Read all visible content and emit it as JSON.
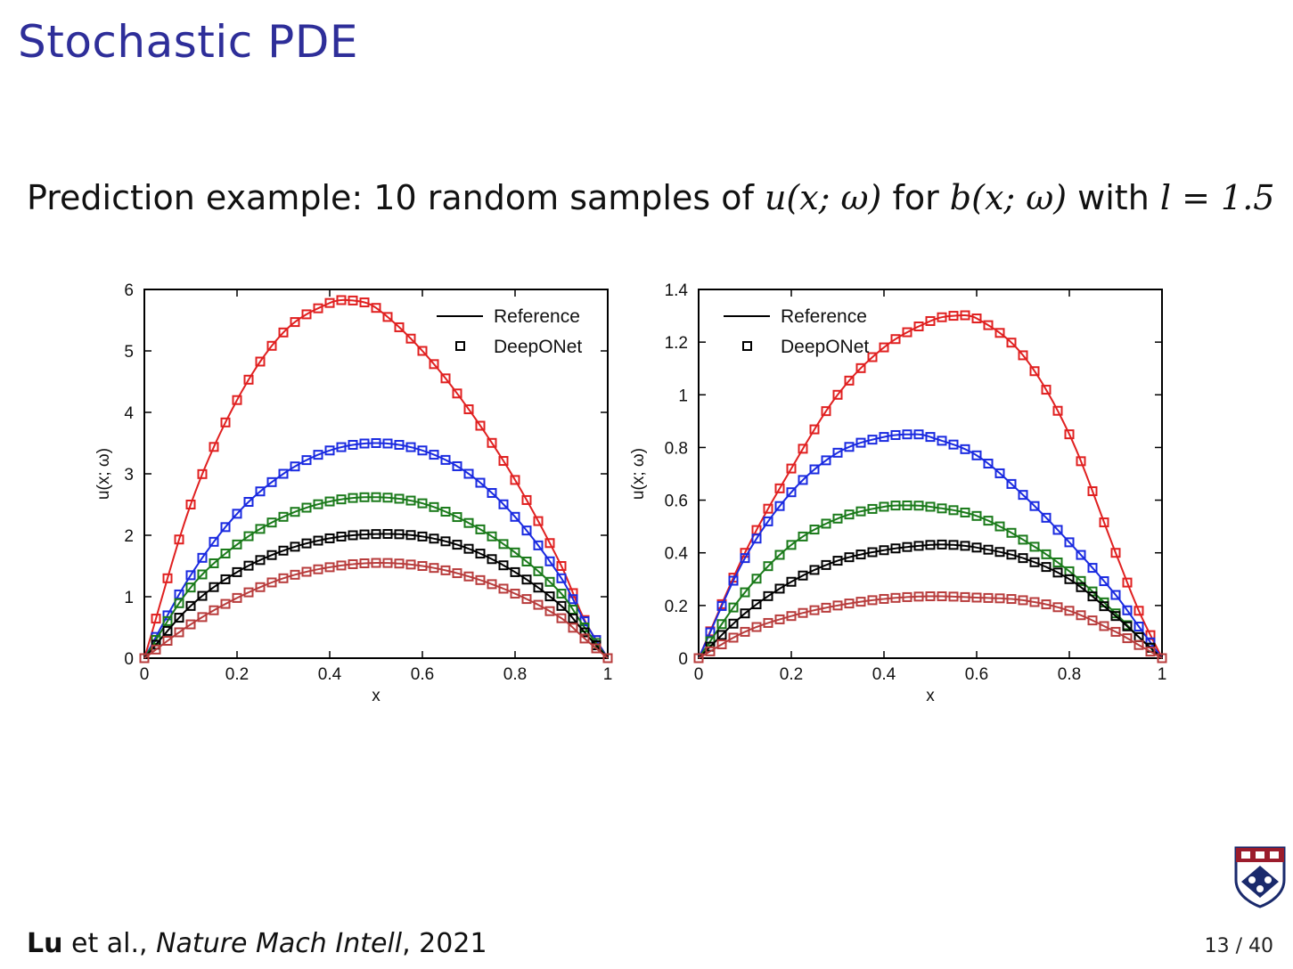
{
  "slide": {
    "title": "Stochastic PDE",
    "subtitle_prefix": "Prediction example: 10 random samples of ",
    "subtitle_u": "u(x; ω)",
    "subtitle_for": " for ",
    "subtitle_b": "b(x; ω)",
    "subtitle_with": " with ",
    "subtitle_l": "l = 1.5",
    "citation_author": "Lu",
    "citation_rest": " et al., ",
    "citation_journal": "Nature Mach Intell",
    "citation_year": ", 2021",
    "page_number": "13 / 40",
    "logo": "university-shield-logo"
  },
  "chart_data": [
    {
      "type": "line",
      "ylabel": "u(x; ω)",
      "xlabel": "x",
      "xlim": [
        0,
        1
      ],
      "ylim": [
        0,
        6
      ],
      "xticks": [
        "0",
        "0.2",
        "0.4",
        "0.6",
        "0.8",
        "1"
      ],
      "yticks": [
        "0",
        "1",
        "2",
        "3",
        "4",
        "5",
        "6"
      ],
      "legend": {
        "placement": "top-right",
        "entries": [
          "Reference",
          "DeepONet"
        ]
      },
      "markers": "squares",
      "series": [
        {
          "color": "#e02020",
          "x": [
            0,
            0.1,
            0.2,
            0.3,
            0.4,
            0.45,
            0.5,
            0.6,
            0.7,
            0.8,
            0.9,
            0.95,
            1
          ],
          "y": [
            0,
            2.5,
            4.2,
            5.3,
            5.78,
            5.82,
            5.7,
            5.0,
            4.05,
            2.9,
            1.5,
            0.62,
            0
          ]
        },
        {
          "color": "#1a2ae0",
          "x": [
            0,
            0.1,
            0.2,
            0.3,
            0.4,
            0.5,
            0.6,
            0.7,
            0.8,
            0.9,
            0.95,
            1
          ],
          "y": [
            0,
            1.35,
            2.35,
            3.0,
            3.38,
            3.5,
            3.38,
            3.0,
            2.3,
            1.3,
            0.6,
            0
          ]
        },
        {
          "color": "#1a7a1a",
          "x": [
            0,
            0.1,
            0.2,
            0.3,
            0.4,
            0.5,
            0.6,
            0.7,
            0.8,
            0.9,
            0.95,
            1
          ],
          "y": [
            0,
            1.15,
            1.85,
            2.3,
            2.55,
            2.62,
            2.52,
            2.2,
            1.72,
            1.05,
            0.5,
            0
          ]
        },
        {
          "color": "#000000",
          "x": [
            0,
            0.1,
            0.2,
            0.3,
            0.4,
            0.5,
            0.6,
            0.7,
            0.8,
            0.9,
            0.95,
            1
          ],
          "y": [
            0,
            0.85,
            1.4,
            1.75,
            1.95,
            2.02,
            1.98,
            1.78,
            1.4,
            0.85,
            0.42,
            0
          ]
        },
        {
          "color": "#b83c3c",
          "x": [
            0,
            0.1,
            0.2,
            0.3,
            0.4,
            0.5,
            0.6,
            0.7,
            0.8,
            0.9,
            0.95,
            1
          ],
          "y": [
            0,
            0.55,
            0.98,
            1.3,
            1.48,
            1.55,
            1.5,
            1.33,
            1.05,
            0.65,
            0.32,
            0
          ]
        }
      ]
    },
    {
      "type": "line",
      "ylabel": "u(x; ω)",
      "xlabel": "x",
      "xlim": [
        0,
        1
      ],
      "ylim": [
        0,
        1.4
      ],
      "xticks": [
        "0",
        "0.2",
        "0.4",
        "0.6",
        "0.8",
        "1"
      ],
      "yticks": [
        "0",
        "0.2",
        "0.4",
        "0.6",
        "0.8",
        "1",
        "1.2",
        "1.4"
      ],
      "legend": {
        "placement": "top-left",
        "entries": [
          "Reference",
          "DeepONet"
        ]
      },
      "markers": "squares",
      "series": [
        {
          "color": "#e02020",
          "x": [
            0,
            0.1,
            0.2,
            0.3,
            0.4,
            0.5,
            0.55,
            0.6,
            0.7,
            0.8,
            0.9,
            0.95,
            1
          ],
          "y": [
            0,
            0.4,
            0.72,
            1.0,
            1.18,
            1.28,
            1.3,
            1.29,
            1.15,
            0.85,
            0.4,
            0.18,
            0
          ]
        },
        {
          "color": "#1a2ae0",
          "x": [
            0,
            0.1,
            0.2,
            0.3,
            0.4,
            0.47,
            0.5,
            0.6,
            0.7,
            0.8,
            0.9,
            0.95,
            1
          ],
          "y": [
            0,
            0.38,
            0.63,
            0.78,
            0.84,
            0.85,
            0.84,
            0.77,
            0.62,
            0.44,
            0.24,
            0.12,
            0
          ]
        },
        {
          "color": "#1a7a1a",
          "x": [
            0,
            0.1,
            0.2,
            0.3,
            0.4,
            0.45,
            0.5,
            0.6,
            0.7,
            0.8,
            0.9,
            0.95,
            1
          ],
          "y": [
            0,
            0.25,
            0.43,
            0.53,
            0.575,
            0.58,
            0.575,
            0.54,
            0.45,
            0.33,
            0.17,
            0.08,
            0
          ]
        },
        {
          "color": "#000000",
          "x": [
            0,
            0.1,
            0.2,
            0.3,
            0.4,
            0.5,
            0.55,
            0.6,
            0.7,
            0.8,
            0.9,
            0.95,
            1
          ],
          "y": [
            0,
            0.17,
            0.29,
            0.37,
            0.41,
            0.43,
            0.43,
            0.42,
            0.38,
            0.3,
            0.16,
            0.08,
            0
          ]
        },
        {
          "color": "#b83c3c",
          "x": [
            0,
            0.1,
            0.2,
            0.3,
            0.4,
            0.5,
            0.6,
            0.7,
            0.8,
            0.9,
            0.95,
            1
          ],
          "y": [
            0,
            0.1,
            0.16,
            0.2,
            0.225,
            0.235,
            0.23,
            0.22,
            0.18,
            0.1,
            0.05,
            0
          ]
        }
      ]
    }
  ]
}
